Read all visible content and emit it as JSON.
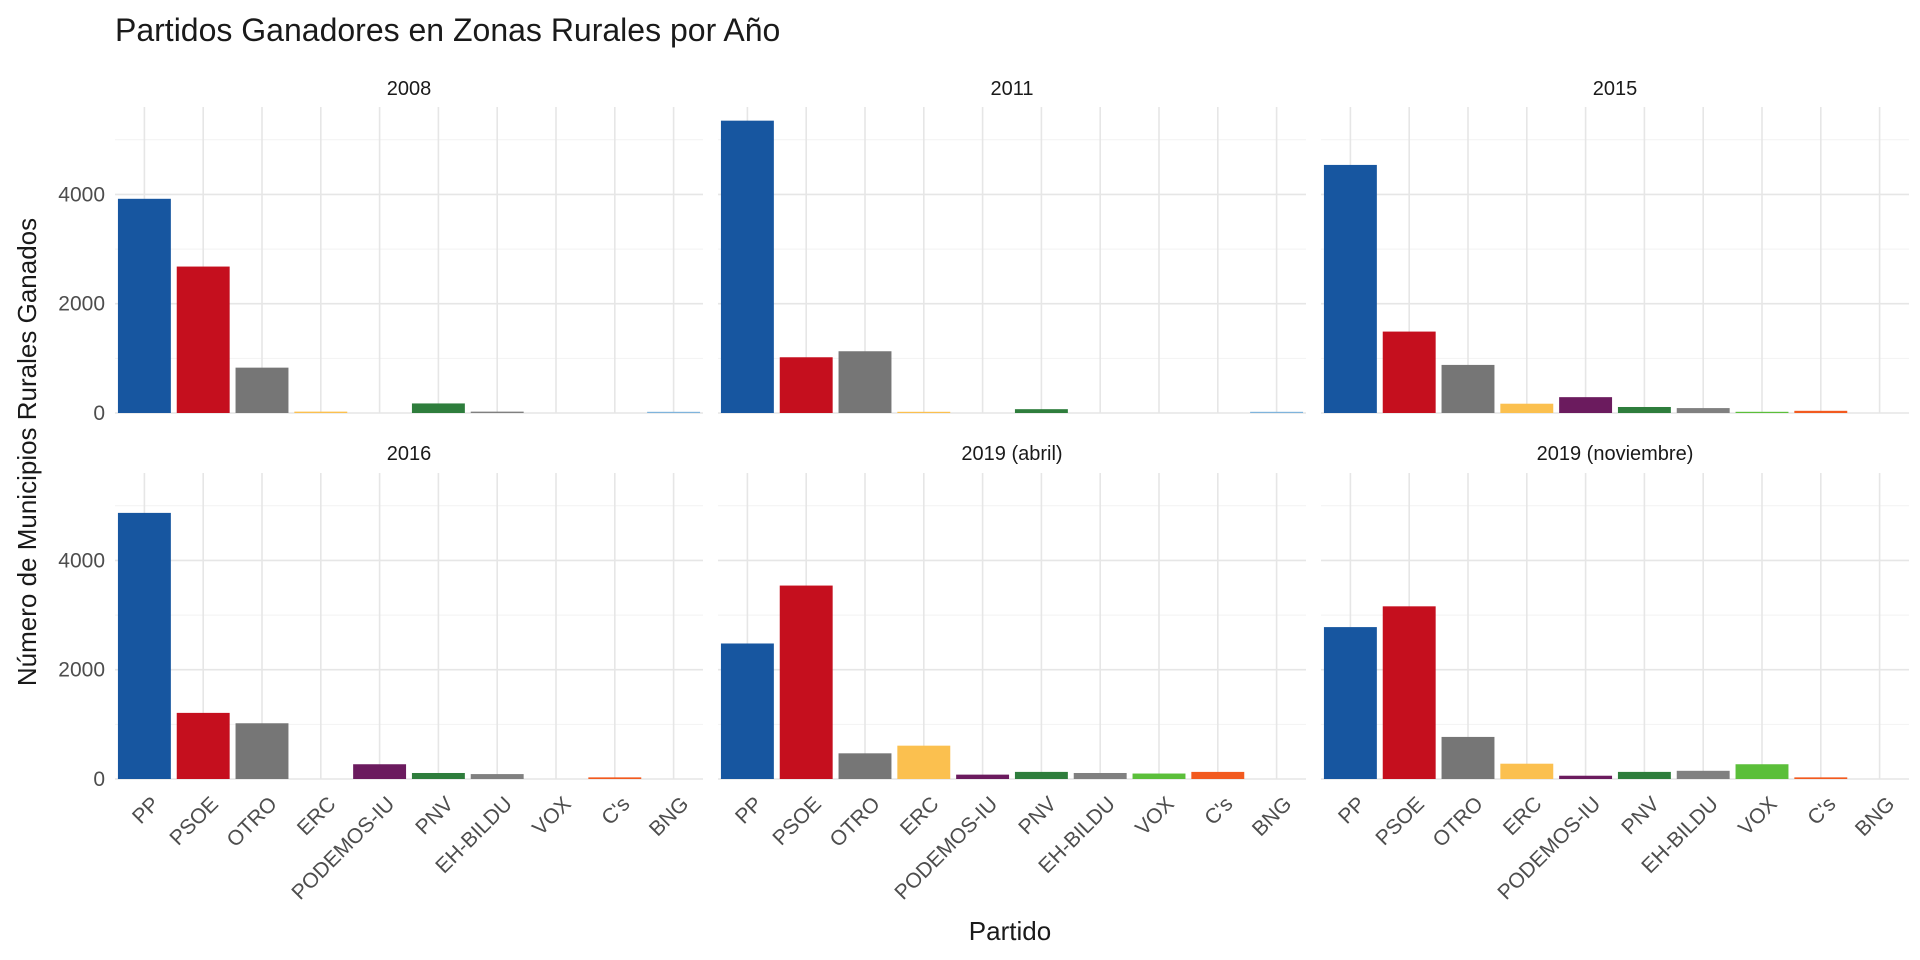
{
  "chart_data": {
    "type": "bar",
    "title": "Partidos Ganadores en Zonas Rurales por Año",
    "xlabel": "Partido",
    "ylabel": "Número de Municipios Rurales Ganados",
    "categories": [
      "PP",
      "PSOE",
      "OTRO",
      "ERC",
      "PODEMOS-IU",
      "PNV",
      "EH-BILDU",
      "VOX",
      "C's",
      "BNG"
    ],
    "ylim": [
      0,
      5600
    ],
    "y_ticks": [
      0,
      2000,
      4000
    ],
    "y_tick_labels": [
      "0",
      "2000",
      "4000"
    ],
    "grid": true,
    "legend": "none",
    "colors": {
      "PP": "#1756a0",
      "PSOE": "#c50f1e",
      "OTRO": "#767676",
      "ERC": "#fbc04f",
      "PODEMOS-IU": "#6b1b5e",
      "PNV": "#2e7d3c",
      "EH-BILDU": "#808080",
      "VOX": "#5bbf3a",
      "C's": "#f25a1f",
      "BNG": "#7fb4dc"
    },
    "panels": [
      {
        "name": "2008",
        "values": [
          3920,
          2680,
          830,
          25,
          0,
          175,
          25,
          0,
          0,
          20
        ]
      },
      {
        "name": "2011",
        "values": [
          5350,
          1020,
          1130,
          20,
          0,
          70,
          0,
          0,
          0,
          20
        ]
      },
      {
        "name": "2015",
        "values": [
          4540,
          1490,
          880,
          170,
          290,
          110,
          90,
          20,
          40,
          0
        ]
      },
      {
        "name": "2016",
        "values": [
          4870,
          1210,
          1020,
          0,
          270,
          110,
          90,
          0,
          30,
          0
        ]
      },
      {
        "name": "2019 (abril)",
        "values": [
          2480,
          3540,
          470,
          610,
          80,
          130,
          110,
          100,
          130,
          0
        ]
      },
      {
        "name": "2019 (noviembre)",
        "values": [
          2780,
          3160,
          770,
          280,
          60,
          130,
          150,
          270,
          30,
          0
        ]
      }
    ]
  }
}
